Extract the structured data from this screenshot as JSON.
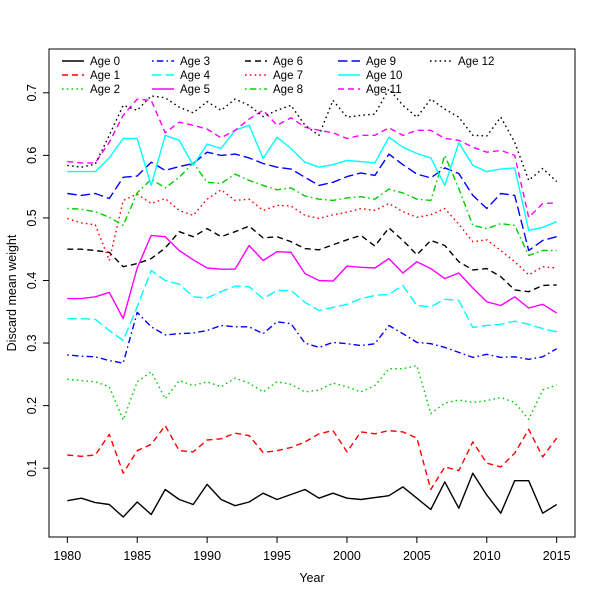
{
  "chart_data": {
    "type": "line",
    "title": "",
    "xlabel": "Year",
    "ylabel": "Discard mean weight",
    "grid": false,
    "legend_position": "top-left",
    "xlim": [
      1978.69,
      2016.31
    ],
    "ylim": [
      -0.01,
      0.77
    ],
    "xticks": [
      1980,
      1985,
      1990,
      1995,
      2000,
      2005,
      2010,
      2015
    ],
    "yticks": [
      0.1,
      0.2,
      0.3,
      0.4,
      0.5,
      0.6,
      0.7
    ],
    "x": [
      1980,
      1981,
      1982,
      1983,
      1984,
      1985,
      1986,
      1987,
      1988,
      1989,
      1990,
      1991,
      1992,
      1993,
      1994,
      1995,
      1996,
      1997,
      1998,
      1999,
      2000,
      2001,
      2002,
      2003,
      2004,
      2005,
      2006,
      2007,
      2008,
      2009,
      2010,
      2011,
      2012,
      2013,
      2014,
      2015
    ],
    "series": [
      {
        "name": "Age 0",
        "color": "#000000",
        "linetype": "solid",
        "values": [
          0.048,
          0.052,
          0.045,
          0.042,
          0.022,
          0.046,
          0.026,
          0.066,
          0.05,
          0.042,
          0.074,
          0.05,
          0.04,
          0.046,
          0.06,
          0.05,
          0.058,
          0.066,
          0.052,
          0.06,
          0.052,
          0.05,
          0.053,
          0.056,
          0.07,
          0.052,
          0.034,
          0.078,
          0.036,
          0.092,
          0.057,
          0.028,
          0.08,
          0.08,
          0.028,
          0.042
        ]
      },
      {
        "name": "Age 1",
        "color": "#FF0000",
        "linetype": "dashed",
        "values": [
          0.121,
          0.119,
          0.121,
          0.154,
          0.092,
          0.128,
          0.138,
          0.168,
          0.128,
          0.126,
          0.145,
          0.147,
          0.156,
          0.152,
          0.125,
          0.128,
          0.133,
          0.142,
          0.155,
          0.16,
          0.126,
          0.158,
          0.155,
          0.16,
          0.158,
          0.148,
          0.066,
          0.102,
          0.096,
          0.142,
          0.108,
          0.102,
          0.124,
          0.162,
          0.118,
          0.148
        ]
      },
      {
        "name": "Age 2",
        "color": "#00CD00",
        "linetype": "dotted",
        "values": [
          0.242,
          0.24,
          0.238,
          0.23,
          0.177,
          0.238,
          0.254,
          0.211,
          0.24,
          0.232,
          0.238,
          0.23,
          0.244,
          0.236,
          0.222,
          0.238,
          0.234,
          0.222,
          0.225,
          0.236,
          0.23,
          0.222,
          0.232,
          0.259,
          0.259,
          0.264,
          0.187,
          0.204,
          0.209,
          0.205,
          0.208,
          0.213,
          0.205,
          0.178,
          0.225,
          0.233
        ]
      },
      {
        "name": "Age 3",
        "color": "#0000FF",
        "linetype": "dotdash",
        "values": [
          0.281,
          0.279,
          0.278,
          0.272,
          0.268,
          0.349,
          0.326,
          0.313,
          0.315,
          0.316,
          0.32,
          0.328,
          0.326,
          0.326,
          0.315,
          0.334,
          0.331,
          0.3,
          0.293,
          0.301,
          0.299,
          0.296,
          0.299,
          0.328,
          0.315,
          0.301,
          0.299,
          0.293,
          0.285,
          0.277,
          0.282,
          0.277,
          0.278,
          0.274,
          0.278,
          0.291
        ]
      },
      {
        "name": "Age 4",
        "color": "#00FFFF",
        "linetype": "longdash",
        "values": [
          0.339,
          0.339,
          0.338,
          0.32,
          0.304,
          0.358,
          0.416,
          0.4,
          0.394,
          0.374,
          0.372,
          0.382,
          0.391,
          0.39,
          0.371,
          0.384,
          0.384,
          0.365,
          0.352,
          0.357,
          0.362,
          0.371,
          0.376,
          0.378,
          0.392,
          0.36,
          0.358,
          0.37,
          0.368,
          0.325,
          0.328,
          0.33,
          0.335,
          0.33,
          0.323,
          0.318
        ]
      },
      {
        "name": "Age 5",
        "color": "#FF00FF",
        "linetype": "solid",
        "values": [
          0.371,
          0.371,
          0.374,
          0.381,
          0.339,
          0.42,
          0.472,
          0.47,
          0.448,
          0.433,
          0.42,
          0.418,
          0.418,
          0.456,
          0.432,
          0.446,
          0.445,
          0.411,
          0.4,
          0.399,
          0.423,
          0.421,
          0.42,
          0.435,
          0.412,
          0.43,
          0.419,
          0.403,
          0.412,
          0.388,
          0.366,
          0.36,
          0.374,
          0.356,
          0.362,
          0.348
        ]
      },
      {
        "name": "Age 6",
        "color": "#000000",
        "linetype": "dashed",
        "values": [
          0.45,
          0.45,
          0.448,
          0.445,
          0.422,
          0.427,
          0.435,
          0.452,
          0.478,
          0.47,
          0.483,
          0.47,
          0.478,
          0.487,
          0.468,
          0.47,
          0.462,
          0.451,
          0.449,
          0.457,
          0.465,
          0.472,
          0.455,
          0.484,
          0.464,
          0.441,
          0.464,
          0.456,
          0.43,
          0.417,
          0.419,
          0.406,
          0.385,
          0.382,
          0.392,
          0.393
        ]
      },
      {
        "name": "Age 7",
        "color": "#FF0000",
        "linetype": "dotted",
        "values": [
          0.499,
          0.492,
          0.489,
          0.432,
          0.528,
          0.538,
          0.523,
          0.531,
          0.512,
          0.504,
          0.53,
          0.545,
          0.528,
          0.53,
          0.512,
          0.52,
          0.519,
          0.504,
          0.499,
          0.505,
          0.509,
          0.515,
          0.512,
          0.523,
          0.51,
          0.501,
          0.505,
          0.515,
          0.49,
          0.462,
          0.465,
          0.448,
          0.43,
          0.409,
          0.422,
          0.42
        ]
      },
      {
        "name": "Age 8",
        "color": "#00CD00",
        "linetype": "dotdash",
        "values": [
          0.515,
          0.514,
          0.51,
          0.501,
          0.488,
          0.54,
          0.562,
          0.548,
          0.565,
          0.588,
          0.557,
          0.555,
          0.57,
          0.56,
          0.552,
          0.545,
          0.548,
          0.535,
          0.53,
          0.528,
          0.532,
          0.534,
          0.53,
          0.546,
          0.54,
          0.53,
          0.528,
          0.6,
          0.547,
          0.488,
          0.483,
          0.491,
          0.488,
          0.44,
          0.448,
          0.448
        ]
      },
      {
        "name": "Age 9",
        "color": "#0000FF",
        "linetype": "longdash",
        "values": [
          0.539,
          0.536,
          0.539,
          0.531,
          0.565,
          0.567,
          0.589,
          0.576,
          0.582,
          0.587,
          0.605,
          0.6,
          0.602,
          0.596,
          0.587,
          0.581,
          0.578,
          0.565,
          0.552,
          0.557,
          0.566,
          0.572,
          0.568,
          0.602,
          0.585,
          0.57,
          0.564,
          0.58,
          0.571,
          0.536,
          0.515,
          0.539,
          0.536,
          0.448,
          0.464,
          0.47
        ]
      },
      {
        "name": "Age 10",
        "color": "#00FFFF",
        "linetype": "solid",
        "values": [
          0.574,
          0.574,
          0.574,
          0.596,
          0.627,
          0.627,
          0.552,
          0.632,
          0.624,
          0.584,
          0.618,
          0.611,
          0.64,
          0.648,
          0.595,
          0.629,
          0.611,
          0.589,
          0.581,
          0.585,
          0.592,
          0.59,
          0.588,
          0.629,
          0.613,
          0.603,
          0.596,
          0.552,
          0.62,
          0.584,
          0.574,
          0.578,
          0.58,
          0.48,
          0.485,
          0.494
        ]
      },
      {
        "name": "Age 11",
        "color": "#FF00FF",
        "linetype": "dashed",
        "values": [
          0.59,
          0.588,
          0.588,
          0.621,
          0.664,
          0.69,
          0.688,
          0.636,
          0.653,
          0.648,
          0.642,
          0.628,
          0.64,
          0.658,
          0.672,
          0.648,
          0.66,
          0.645,
          0.64,
          0.636,
          0.627,
          0.632,
          0.632,
          0.644,
          0.632,
          0.64,
          0.64,
          0.627,
          0.624,
          0.613,
          0.605,
          0.608,
          0.6,
          0.501,
          0.523,
          0.524
        ]
      },
      {
        "name": "Age 12",
        "color": "#000000",
        "linetype": "dotted",
        "values": [
          0.584,
          0.581,
          0.586,
          0.632,
          0.68,
          0.672,
          0.695,
          0.692,
          0.677,
          0.668,
          0.686,
          0.672,
          0.69,
          0.68,
          0.662,
          0.672,
          0.68,
          0.648,
          0.632,
          0.688,
          0.661,
          0.664,
          0.666,
          0.706,
          0.68,
          0.661,
          0.69,
          0.674,
          0.661,
          0.632,
          0.631,
          0.661,
          0.621,
          0.56,
          0.579,
          0.558
        ]
      }
    ],
    "legend": {
      "labels": [
        "Age 0",
        "Age 1",
        "Age 2",
        "Age 3",
        "Age 4",
        "Age 5",
        "Age 6",
        "Age 7",
        "Age 8",
        "Age 9",
        "Age 10",
        "Age 11",
        "Age 12"
      ],
      "columns": 5,
      "rows": 3
    }
  },
  "colors": {
    "background": "#ffffff",
    "axis": "#000000",
    "palette": [
      "#000000",
      "#FF0000",
      "#00CD00",
      "#0000FF",
      "#00FFFF",
      "#FF00FF"
    ]
  }
}
